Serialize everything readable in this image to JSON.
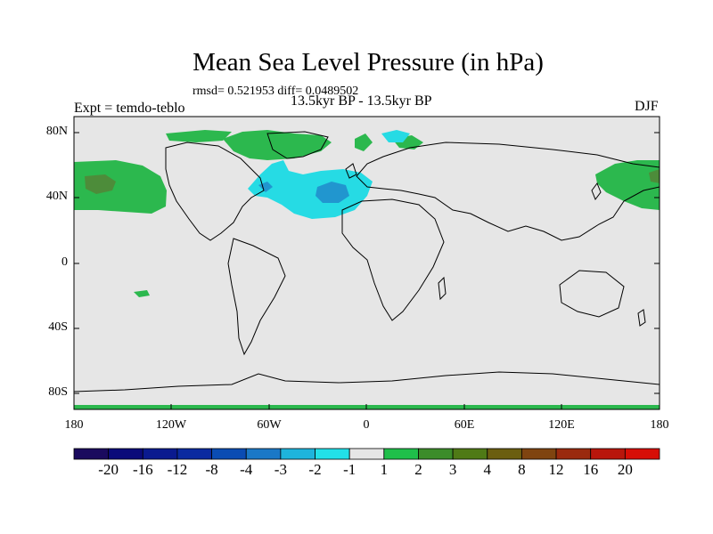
{
  "header": {
    "title": "Mean Sea Level Pressure (in hPa)",
    "stats": "rmsd= 0.521953 diff= 0.0489502",
    "subtitle": "13.5kyr BP - 13.5kyr BP",
    "experiment": "Expt = temdo-teblo",
    "season": "DJF"
  },
  "axes": {
    "lat_labels": [
      "80N",
      "40N",
      "0",
      "40S",
      "80S"
    ],
    "lon_labels": [
      "180",
      "120W",
      "60W",
      "0",
      "60E",
      "120E",
      "180"
    ]
  },
  "colorbar": {
    "labels": [
      "-20",
      "-16",
      "-12",
      "-8",
      "-4",
      "-3",
      "-2",
      "-1",
      "1",
      "2",
      "3",
      "4",
      "8",
      "12",
      "16",
      "20"
    ],
    "colors": [
      "#1a0a5e",
      "#0a0a7a",
      "#0a1a8f",
      "#0a2aa0",
      "#0a4cb3",
      "#1a78c7",
      "#1eb4dc",
      "#22e0e8",
      "#e6e6e6",
      "#1fbf4a",
      "#3c8c2a",
      "#4f7a16",
      "#6b5e10",
      "#7f4410",
      "#9a2a0e",
      "#b8160c",
      "#d70e06"
    ]
  },
  "map_style": {
    "ocean": "#e6e6e6",
    "coast": "#000000",
    "anomaly_high": "#2cb84e",
    "anomaly_high_inner": "#4d8c3a",
    "anomaly_low": "#26dbe4",
    "anomaly_low_inner": "#2196cf"
  }
}
